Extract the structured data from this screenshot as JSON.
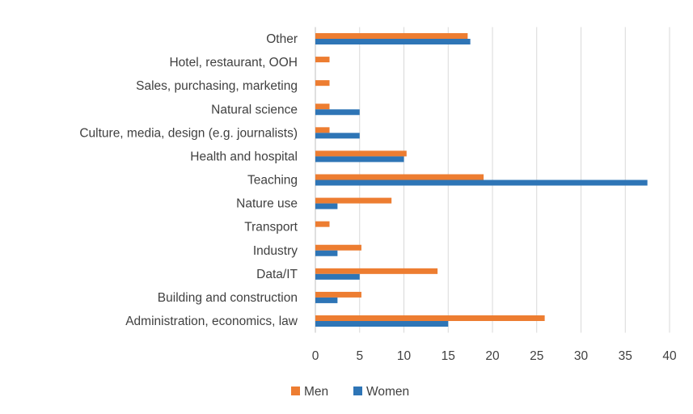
{
  "chart_data": {
    "type": "bar",
    "orientation": "horizontal",
    "categories": [
      "Other",
      "Hotel, restaurant, OOH",
      "Sales, purchasing, marketing",
      "Natural science",
      "Culture, media, design (e.g. journalists)",
      "Health and hospital",
      "Teaching",
      "Nature use",
      "Transport",
      "Industry",
      "Data/IT",
      "Building and construction",
      "Administration, economics, law"
    ],
    "series": [
      {
        "name": "Men",
        "color": "#ed7d31",
        "values": [
          17.2,
          1.6,
          1.6,
          1.6,
          1.6,
          10.3,
          19.0,
          8.6,
          1.6,
          5.2,
          13.8,
          5.2,
          25.9
        ]
      },
      {
        "name": "Women",
        "color": "#2e75b6",
        "values": [
          17.5,
          0,
          0,
          5.0,
          5.0,
          10.0,
          37.5,
          2.5,
          0,
          2.5,
          5.0,
          2.5,
          15.0
        ]
      }
    ],
    "xlim": [
      0,
      40
    ],
    "xticks": [
      0,
      5,
      10,
      15,
      20,
      25,
      30,
      35,
      40
    ],
    "grid": true,
    "legend_position": "bottom",
    "title": "",
    "xlabel": "",
    "ylabel": ""
  }
}
